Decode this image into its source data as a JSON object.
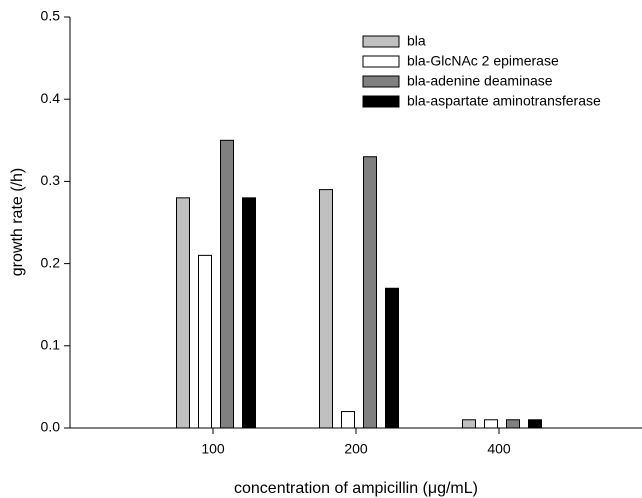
{
  "chart_data": {
    "type": "bar",
    "xlabel": "concentration of ampicillin (μg/mL)",
    "ylabel": "growth rate (/h)",
    "categories": [
      "100",
      "200",
      "400"
    ],
    "series": [
      {
        "name": "bla",
        "color": "#c0c0c0",
        "values": [
          0.28,
          0.29,
          0.01
        ]
      },
      {
        "name": "bla-GlcNAc 2 epimerase",
        "color": "#ffffff",
        "values": [
          0.21,
          0.02,
          0.01
        ]
      },
      {
        "name": "bla-adenine deaminase",
        "color": "#808080",
        "values": [
          0.35,
          0.33,
          0.01
        ]
      },
      {
        "name": "bla-aspartate aminotransferase",
        "color": "#000000",
        "values": [
          0.28,
          0.17,
          0.01
        ]
      }
    ],
    "ylim": [
      0,
      0.5
    ],
    "yticks": [
      {
        "value": 0,
        "label": "0.0"
      },
      0.1,
      0.2,
      0.3,
      0.4,
      0.5
    ],
    "legend": "upper right"
  }
}
